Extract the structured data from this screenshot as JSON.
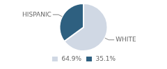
{
  "chart_data": {
    "type": "pie",
    "categories": [
      "WHITE",
      "HISPANIC"
    ],
    "values": [
      64.9,
      35.1
    ],
    "value_labels": [
      "64.9%",
      "35.1%"
    ],
    "colors": [
      "#d0d8e4",
      "#2e6080"
    ],
    "legend": "bottom"
  }
}
